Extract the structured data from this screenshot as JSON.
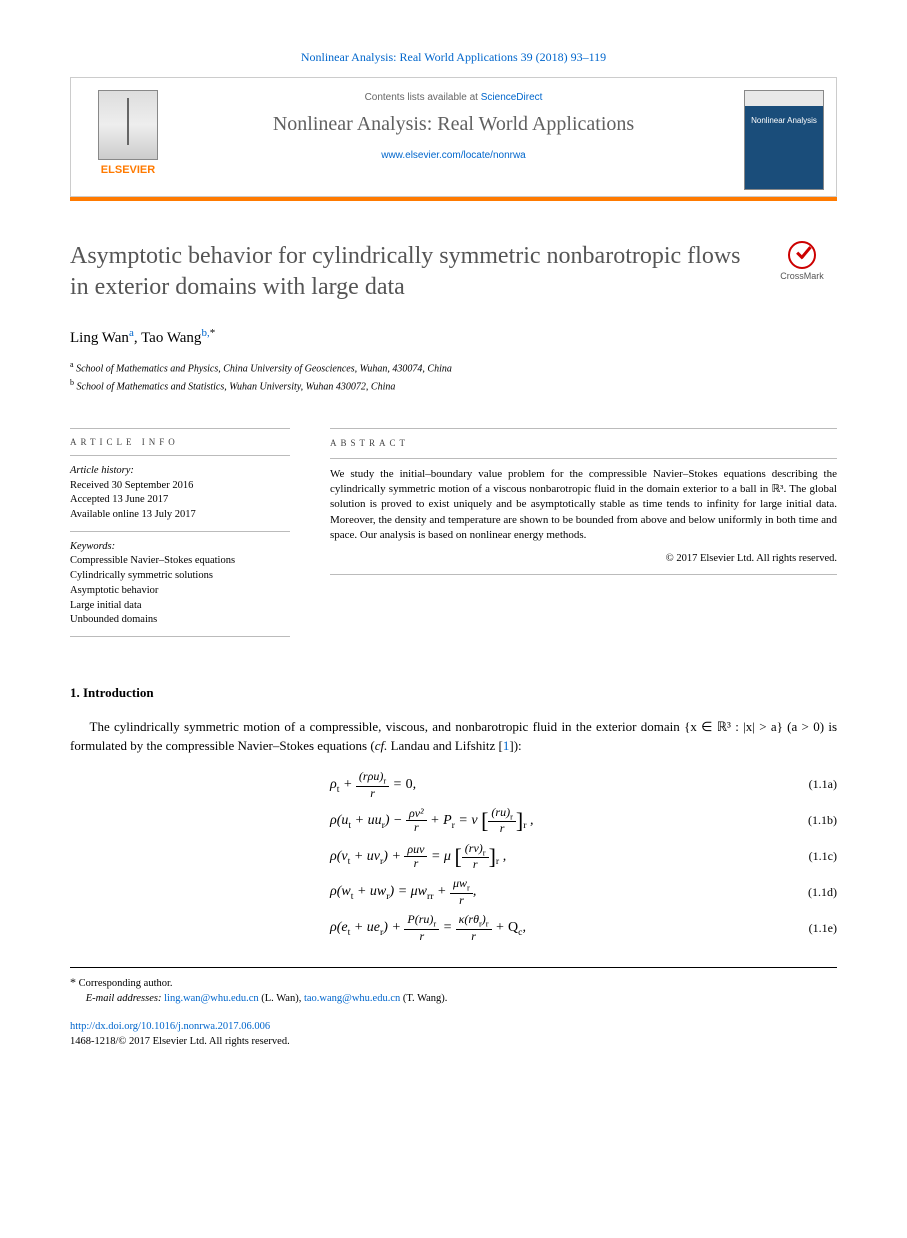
{
  "citation": {
    "journal_link_text": "Nonlinear Analysis: Real World Applications 39 (2018) 93–119",
    "journal_url": "#"
  },
  "header": {
    "contents_prefix": "Contents lists available at ",
    "contents_link": "ScienceDirect",
    "journal_name": "Nonlinear Analysis: Real World Applications",
    "homepage_url": "www.elsevier.com/locate/nonrwa",
    "publisher": "ELSEVIER",
    "cover_label": "Nonlinear Analysis"
  },
  "crossmark": "CrossMark",
  "title": "Asymptotic behavior for cylindrically symmetric nonbarotropic flows in exterior domains with large data",
  "authors": [
    {
      "name": "Ling Wan",
      "aff": "a"
    },
    {
      "name": "Tao Wang",
      "aff": "b",
      "corr": true
    }
  ],
  "affiliations": [
    {
      "label": "a",
      "text": "School of Mathematics and Physics, China University of Geosciences, Wuhan, 430074, China"
    },
    {
      "label": "b",
      "text": "School of Mathematics and Statistics, Wuhan University, Wuhan 430072, China"
    }
  ],
  "article_info": {
    "heading": "article info",
    "history_label": "Article history:",
    "received": "Received 30 September 2016",
    "accepted": "Accepted 13 June 2017",
    "online": "Available online 13 July 2017",
    "keywords_label": "Keywords:",
    "keywords": [
      "Compressible Navier–Stokes equations",
      "Cylindrically symmetric solutions",
      "Asymptotic behavior",
      "Large initial data",
      "Unbounded domains"
    ]
  },
  "abstract": {
    "heading": "abstract",
    "text": "We study the initial–boundary value problem for the compressible Navier–Stokes equations describing the cylindrically symmetric motion of a viscous nonbarotropic fluid in the domain exterior to a ball in ℝ³. The global solution is proved to exist uniquely and be asymptotically stable as time tends to infinity for large initial data. Moreover, the density and temperature are shown to be bounded from above and below uniformly in both time and space. Our analysis is based on nonlinear energy methods.",
    "copyright": "© 2017 Elsevier Ltd. All rights reserved."
  },
  "intro": {
    "heading": "1. Introduction",
    "para1_pre": "The cylindrically symmetric motion of a compressible, viscous, and nonbarotropic fluid in the exterior domain {x ∈ ℝ³ : |x| > a} (a > 0) is formulated by the compressible Navier–Stokes equations (",
    "para1_cf": "cf.",
    "para1_mid": " Landau and Lifshitz [",
    "para1_ref": "1",
    "para1_end": "]):"
  },
  "equations": [
    {
      "num": "(1.1a)"
    },
    {
      "num": "(1.1b)"
    },
    {
      "num": "(1.1c)"
    },
    {
      "num": "(1.1d)"
    },
    {
      "num": "(1.1e)"
    }
  ],
  "footer": {
    "corr_label": "Corresponding author.",
    "email_label": "E-mail addresses:",
    "emails": [
      {
        "addr": "ling.wan@whu.edu.cn",
        "who": "(L. Wan)"
      },
      {
        "addr": "tao.wang@whu.edu.cn",
        "who": "(T. Wang)"
      }
    ],
    "doi": "http://dx.doi.org/10.1016/j.nonrwa.2017.06.006",
    "issn_copyright": "1468-1218/© 2017 Elsevier Ltd. All rights reserved."
  }
}
